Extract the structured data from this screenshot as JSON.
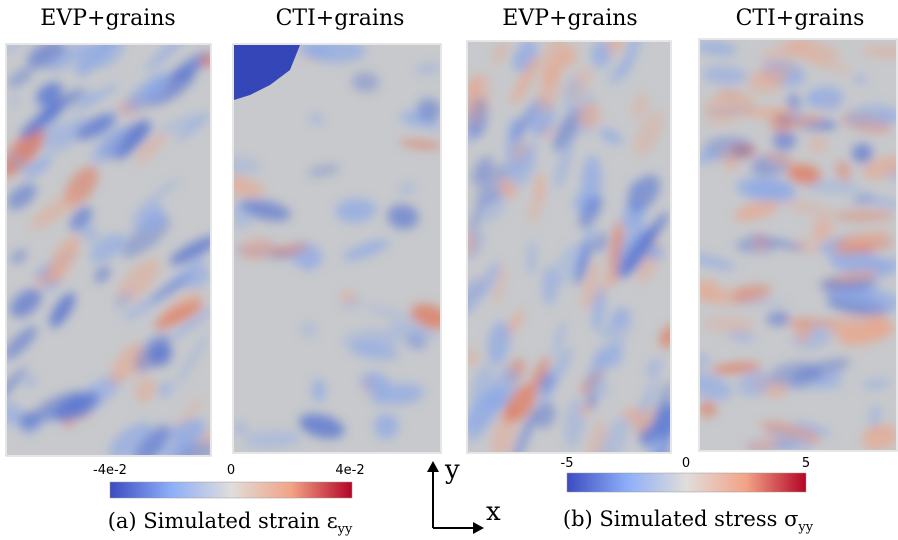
{
  "panels": [
    {
      "title": "EVP+grains"
    },
    {
      "title": "CTI+grains"
    },
    {
      "title": "EVP+grains"
    },
    {
      "title": "CTI+grains"
    }
  ],
  "colorbars": [
    {
      "ticks": [
        "-4e-2",
        "0",
        "4e-2"
      ],
      "caption": {
        "text": "(a) Simulated strain ε",
        "subscript": "yy"
      }
    },
    {
      "ticks": [
        "-5",
        "0",
        "5"
      ],
      "caption": {
        "text": "(b) Simulated stress σ",
        "subscript": "yy"
      }
    }
  ],
  "axes": {
    "y": "y",
    "x": "x"
  }
}
